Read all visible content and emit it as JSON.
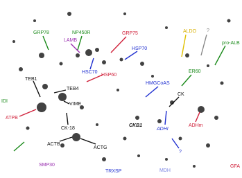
{
  "labels": [
    "GRP78",
    "NP450R",
    "GRP75",
    "ALDO",
    "?",
    "pro-ALB",
    "LAMB",
    "HSP70",
    "HSC70",
    "HSP60",
    "HMGCoAS",
    "ER60",
    "TEB1",
    "TEB4",
    "CK",
    "VIME",
    "ATPB",
    "CK-18",
    "CKB1",
    "ADHI",
    "ADHm",
    "?",
    "ACTB",
    "ACTG",
    "SMP30",
    "TRXSP",
    "MDH",
    "GFA",
    "IDI"
  ]
}
